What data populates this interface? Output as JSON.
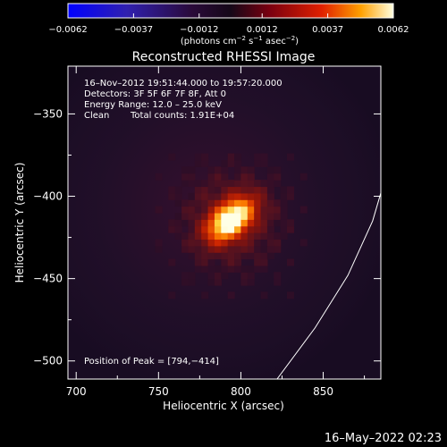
{
  "chart_data": {
    "type": "heatmap",
    "title": "Reconstructed RHESSI Image",
    "xlabel": "Heliocentric X (arcsec)",
    "ylabel": "Heliocentric Y (arcsec)",
    "xlim": [
      695,
      885
    ],
    "ylim": [
      -511,
      -321
    ],
    "x_ticks": [
      700,
      750,
      800,
      850
    ],
    "y_ticks": [
      -350,
      -400,
      -450,
      -500
    ],
    "x_tick_labels": [
      "700",
      "750",
      "800",
      "850"
    ],
    "y_tick_labels": [
      "−350",
      "−400",
      "−450",
      "−500"
    ],
    "colorbar": {
      "min": -0.0062,
      "max": 0.0062,
      "tick_values": [
        -0.0062,
        -0.0037,
        -0.0012,
        0.0012,
        0.0037,
        0.0062
      ],
      "tick_labels": [
        "−0.0062",
        "−0.0037",
        "−0.0012",
        "0.0012",
        "0.0037",
        "0.0062"
      ],
      "units_prefix": "(photons cm",
      "units_exp1": "−2",
      "units_mid1": " s",
      "units_exp2": "−1",
      "units_mid2": " asec",
      "units_exp3": "−2",
      "units_suffix": ")"
    },
    "annotations": {
      "time_range": "16–Nov–2012 19:51:44.000 to 19:57:20.000",
      "detectors": "Detectors: 3F 5F 6F 7F 8F, Att 0",
      "energy_range": "Energy Range: 12.0 – 25.0 keV",
      "method": "Clean",
      "total_counts": "Total counts: 1.91E+04",
      "peak_position": "Position of Peak = [794,−414]"
    },
    "peak": {
      "x": 794,
      "y": -414
    },
    "limb_curve": [
      [
        822,
        -511
      ],
      [
        845,
        -480
      ],
      [
        865,
        -448
      ],
      [
        880,
        -415
      ],
      [
        885,
        -398
      ]
    ]
  },
  "footer_date": "16–May–2022 02:23"
}
